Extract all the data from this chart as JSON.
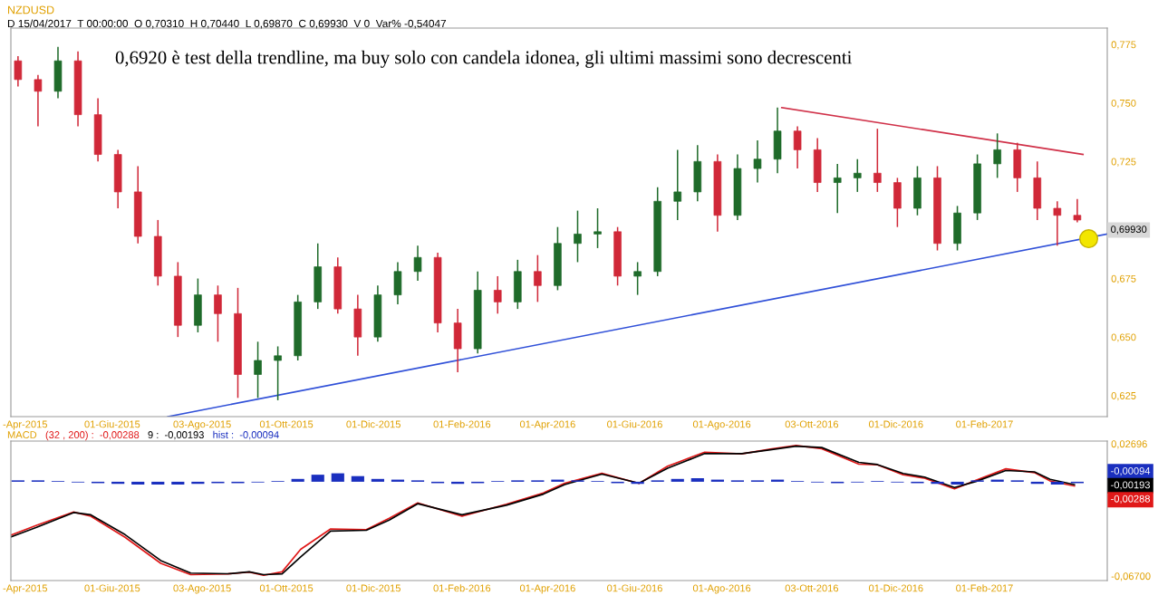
{
  "chart_data": [
    {
      "type": "candlestick",
      "title": "NZDUSD",
      "subtitle": "D 15/04/2017  T 00:00:00  O 0,70310  H 0,70440  L 0,69870  C 0,69930  V 0  Var% -0,54047",
      "x": [
        "2015-03-27",
        "2015-04-10",
        "2015-04-24",
        "2015-05-08",
        "2015-05-22",
        "2015-06-05",
        "2015-06-19",
        "2015-07-03",
        "2015-07-17",
        "2015-07-31",
        "2015-08-14",
        "2015-08-28",
        "2015-09-11",
        "2015-09-25",
        "2015-10-09",
        "2015-10-23",
        "2015-11-06",
        "2015-11-20",
        "2015-12-04",
        "2015-12-18",
        "2016-01-01",
        "2016-01-15",
        "2016-01-29",
        "2016-02-12",
        "2016-02-26",
        "2016-03-11",
        "2016-03-25",
        "2016-04-08",
        "2016-04-22",
        "2016-05-06",
        "2016-05-20",
        "2016-06-03",
        "2016-06-17",
        "2016-07-01",
        "2016-07-15",
        "2016-07-29",
        "2016-08-12",
        "2016-08-26",
        "2016-09-09",
        "2016-09-23",
        "2016-10-07",
        "2016-10-21",
        "2016-11-04",
        "2016-11-18",
        "2016-12-02",
        "2016-12-16",
        "2016-12-30",
        "2017-01-13",
        "2017-01-27",
        "2017-02-10",
        "2017-02-24",
        "2017-03-10",
        "2017-03-24",
        "2017-04-07"
      ],
      "ohlc": [
        [
          0.768,
          0.77,
          0.757,
          0.76
        ],
        [
          0.76,
          0.762,
          0.74,
          0.755
        ],
        [
          0.755,
          0.774,
          0.752,
          0.768
        ],
        [
          0.768,
          0.772,
          0.74,
          0.745
        ],
        [
          0.745,
          0.752,
          0.725,
          0.728
        ],
        [
          0.728,
          0.73,
          0.705,
          0.712
        ],
        [
          0.712,
          0.723,
          0.69,
          0.693
        ],
        [
          0.693,
          0.7,
          0.672,
          0.676
        ],
        [
          0.676,
          0.682,
          0.65,
          0.655
        ],
        [
          0.655,
          0.675,
          0.652,
          0.668
        ],
        [
          0.668,
          0.672,
          0.648,
          0.66
        ],
        [
          0.66,
          0.671,
          0.624,
          0.634
        ],
        [
          0.634,
          0.648,
          0.624,
          0.64
        ],
        [
          0.64,
          0.646,
          0.623,
          0.642
        ],
        [
          0.642,
          0.668,
          0.64,
          0.665
        ],
        [
          0.665,
          0.69,
          0.662,
          0.68
        ],
        [
          0.68,
          0.684,
          0.66,
          0.662
        ],
        [
          0.662,
          0.668,
          0.642,
          0.65
        ],
        [
          0.65,
          0.672,
          0.648,
          0.668
        ],
        [
          0.668,
          0.682,
          0.664,
          0.678
        ],
        [
          0.678,
          0.689,
          0.674,
          0.684
        ],
        [
          0.684,
          0.686,
          0.652,
          0.656
        ],
        [
          0.656,
          0.662,
          0.635,
          0.645
        ],
        [
          0.645,
          0.678,
          0.643,
          0.67
        ],
        [
          0.67,
          0.676,
          0.66,
          0.665
        ],
        [
          0.665,
          0.683,
          0.662,
          0.678
        ],
        [
          0.678,
          0.685,
          0.665,
          0.672
        ],
        [
          0.672,
          0.697,
          0.67,
          0.69
        ],
        [
          0.69,
          0.704,
          0.682,
          0.694
        ],
        [
          0.694,
          0.705,
          0.688,
          0.695
        ],
        [
          0.695,
          0.697,
          0.672,
          0.676
        ],
        [
          0.676,
          0.682,
          0.668,
          0.678
        ],
        [
          0.678,
          0.714,
          0.676,
          0.708
        ],
        [
          0.708,
          0.73,
          0.7,
          0.712
        ],
        [
          0.712,
          0.732,
          0.708,
          0.725
        ],
        [
          0.725,
          0.728,
          0.695,
          0.702
        ],
        [
          0.702,
          0.728,
          0.7,
          0.722
        ],
        [
          0.722,
          0.734,
          0.716,
          0.726
        ],
        [
          0.726,
          0.748,
          0.72,
          0.738
        ],
        [
          0.738,
          0.74,
          0.722,
          0.73
        ],
        [
          0.73,
          0.735,
          0.712,
          0.716
        ],
        [
          0.716,
          0.724,
          0.703,
          0.718
        ],
        [
          0.718,
          0.726,
          0.712,
          0.72
        ],
        [
          0.72,
          0.739,
          0.712,
          0.716
        ],
        [
          0.716,
          0.718,
          0.697,
          0.705
        ],
        [
          0.705,
          0.723,
          0.702,
          0.718
        ],
        [
          0.718,
          0.723,
          0.687,
          0.69
        ],
        [
          0.69,
          0.706,
          0.687,
          0.703
        ],
        [
          0.703,
          0.728,
          0.7,
          0.724
        ],
        [
          0.724,
          0.737,
          0.718,
          0.73
        ],
        [
          0.73,
          0.733,
          0.712,
          0.718
        ],
        [
          0.718,
          0.725,
          0.7,
          0.705
        ],
        [
          0.705,
          0.708,
          0.689,
          0.702
        ],
        [
          0.702,
          0.709,
          0.699,
          0.7
        ]
      ],
      "series": [
        {
          "type": "line",
          "color": "#3050d8",
          "x": [
            "2015-07-10",
            "2017-04-28"
          ],
          "values": [
            0.616,
            0.694
          ]
        },
        {
          "type": "line",
          "color": "#d03048",
          "x": [
            "2016-09-12",
            "2017-04-11"
          ],
          "values": [
            0.748,
            0.728
          ]
        },
        {
          "type": "scatter",
          "color": "#f2e600",
          "marker": "circle",
          "x": [
            "2017-04-15"
          ],
          "values": [
            0.692
          ]
        }
      ],
      "xlim": [
        "2015-03-22",
        "2017-04-28"
      ],
      "ylim": [
        0.616,
        0.782
      ],
      "xticks": [
        {
          "value": "2015-04-01",
          "label": "-Apr-2015"
        },
        {
          "value": "2015-06-01",
          "label": "01-Giu-2015"
        },
        {
          "value": "2015-08-03",
          "label": "03-Ago-2015"
        },
        {
          "value": "2015-10-01",
          "label": "01-Ott-2015"
        },
        {
          "value": "2015-12-01",
          "label": "01-Dic-2015"
        },
        {
          "value": "2016-02-01",
          "label": "01-Feb-2016"
        },
        {
          "value": "2016-04-01",
          "label": "01-Apr-2016"
        },
        {
          "value": "2016-06-01",
          "label": "01-Giu-2016"
        },
        {
          "value": "2016-08-01",
          "label": "01-Ago-2016"
        },
        {
          "value": "2016-10-03",
          "label": "03-Ott-2016"
        },
        {
          "value": "2016-12-01",
          "label": "01-Dic-2016"
        },
        {
          "value": "2017-02-01",
          "label": "01-Feb-2017"
        }
      ],
      "yticks": [
        {
          "value": 0.625,
          "label": "0,625"
        },
        {
          "value": 0.65,
          "label": "0,650"
        },
        {
          "value": 0.675,
          "label": "0,675"
        },
        {
          "value": 0.725,
          "label": "0,725"
        },
        {
          "value": 0.75,
          "label": "0,750"
        },
        {
          "value": 0.775,
          "label": "0,775"
        }
      ],
      "annotations": [
        "0,6920 è test della trendline, ma buy solo con candela idonea, gli ultimi massimi sono decrescenti",
        "0,69930"
      ],
      "grid": false
    },
    {
      "type": "line",
      "title": "MACD",
      "legend": "top left",
      "series": [
        {
          "name": "(32 , 200) :",
          "color": "#e01818",
          "x": [
            "2015-03-22",
            "2015-04-09",
            "2015-05-05",
            "2015-05-17",
            "2015-06-10",
            "2015-07-05",
            "2015-07-26",
            "2015-08-21",
            "2015-09-05",
            "2015-09-15",
            "2015-09-28",
            "2015-10-11",
            "2015-11-01",
            "2015-11-26",
            "2015-12-12",
            "2016-01-01",
            "2016-02-01",
            "2016-03-03",
            "2016-03-29",
            "2016-04-13",
            "2016-05-09",
            "2016-06-04",
            "2016-06-24",
            "2016-07-20",
            "2016-08-15",
            "2016-09-04",
            "2016-09-22",
            "2016-10-10",
            "2016-11-05",
            "2016-11-18",
            "2016-12-06",
            "2016-12-21",
            "2017-01-11",
            "2017-01-26",
            "2017-02-16",
            "2017-03-08",
            "2017-03-19",
            "2017-04-05"
          ],
          "values": [
            -0.038,
            -0.031,
            -0.0215,
            -0.0245,
            -0.0395,
            -0.058,
            -0.066,
            -0.0655,
            -0.0642,
            -0.0665,
            -0.064,
            -0.048,
            -0.0335,
            -0.034,
            -0.026,
            -0.015,
            -0.0245,
            -0.016,
            -0.008,
            -0.001,
            0.006,
            -0.0012,
            0.011,
            0.021,
            0.0198,
            0.0232,
            0.0258,
            0.0235,
            0.0125,
            0.012,
            0.005,
            0.0025,
            -0.005,
            0.001,
            0.0092,
            0.0065,
            0.0005,
            -0.003
          ]
        },
        {
          "name": "9 :",
          "color": "#000000",
          "x": [
            "2015-03-22",
            "2015-04-09",
            "2015-05-05",
            "2015-05-17",
            "2015-06-10",
            "2015-07-05",
            "2015-07-26",
            "2015-08-21",
            "2015-09-05",
            "2015-09-15",
            "2015-09-28",
            "2015-10-11",
            "2015-11-01",
            "2015-11-26",
            "2015-12-12",
            "2016-01-01",
            "2016-02-01",
            "2016-03-03",
            "2016-03-29",
            "2016-04-13",
            "2016-05-09",
            "2016-06-04",
            "2016-06-24",
            "2016-07-20",
            "2016-08-15",
            "2016-09-04",
            "2016-09-22",
            "2016-10-10",
            "2016-11-05",
            "2016-11-18",
            "2016-12-06",
            "2016-12-21",
            "2017-01-11",
            "2017-01-26",
            "2017-02-16",
            "2017-03-08",
            "2017-03-19",
            "2017-04-05"
          ],
          "values": [
            -0.0392,
            -0.0324,
            -0.0219,
            -0.0235,
            -0.0376,
            -0.056,
            -0.0649,
            -0.0654,
            -0.064,
            -0.066,
            -0.0655,
            -0.0534,
            -0.035,
            -0.0345,
            -0.0272,
            -0.0156,
            -0.0235,
            -0.0167,
            -0.0088,
            -0.002,
            0.0054,
            -0.001,
            0.0096,
            0.02,
            0.02,
            0.0227,
            0.0253,
            0.0243,
            0.0138,
            0.0122,
            0.0059,
            0.0033,
            -0.0041,
            0.0002,
            0.008,
            0.007,
            0.0017,
            -0.002
          ]
        },
        {
          "name": "hist :",
          "type": "bar",
          "color": "#1a2fbf",
          "x": [
            "2015-03-27",
            "2015-04-10",
            "2015-04-24",
            "2015-05-08",
            "2015-05-22",
            "2015-06-05",
            "2015-06-19",
            "2015-07-03",
            "2015-07-17",
            "2015-07-31",
            "2015-08-14",
            "2015-08-28",
            "2015-09-11",
            "2015-09-25",
            "2015-10-09",
            "2015-10-23",
            "2015-11-06",
            "2015-11-20",
            "2015-12-04",
            "2015-12-18",
            "2016-01-01",
            "2016-01-15",
            "2016-01-29",
            "2016-02-12",
            "2016-02-26",
            "2016-03-11",
            "2016-03-25",
            "2016-04-08",
            "2016-04-22",
            "2016-05-06",
            "2016-05-20",
            "2016-06-03",
            "2016-06-17",
            "2016-07-01",
            "2016-07-15",
            "2016-07-29",
            "2016-08-12",
            "2016-08-26",
            "2016-09-09",
            "2016-09-23",
            "2016-10-07",
            "2016-10-21",
            "2016-11-04",
            "2016-11-18",
            "2016-12-02",
            "2016-12-16",
            "2016-12-30",
            "2017-01-13",
            "2017-01-27",
            "2017-02-10",
            "2017-02-24",
            "2017-03-10",
            "2017-03-24",
            "2017-04-07"
          ],
          "values": [
            0.001,
            0.001,
            0.0005,
            -0.0005,
            -0.001,
            -0.0015,
            -0.002,
            -0.002,
            -0.002,
            -0.0015,
            -0.001,
            -0.001,
            -0.0005,
            0.0005,
            0.002,
            0.005,
            0.006,
            0.004,
            0.002,
            0.0015,
            0.001,
            -0.001,
            -0.0015,
            -0.001,
            0.0005,
            0.001,
            0.001,
            0.0015,
            0.001,
            0.0005,
            -0.001,
            -0.0015,
            0.001,
            0.002,
            0.0025,
            0.0015,
            0.001,
            0.001,
            0.0015,
            0.0005,
            -0.0005,
            -0.001,
            -0.0005,
            0.0005,
            -0.0005,
            -0.001,
            -0.0015,
            -0.002,
            0.001,
            0.0015,
            0.001,
            -0.0015,
            -0.002,
            -0.001
          ]
        }
      ],
      "annotations": [
        "-0,00288",
        "-0,00193",
        "-0,00094"
      ],
      "xlim": [
        "2015-03-22",
        "2017-04-28"
      ],
      "ylim": [
        -0.0702,
        0.0289
      ],
      "xticks": [
        {
          "value": "2015-04-01",
          "label": "-Apr-2015"
        },
        {
          "value": "2015-06-01",
          "label": "01-Giu-2015"
        },
        {
          "value": "2015-08-03",
          "label": "03-Ago-2015"
        },
        {
          "value": "2015-10-01",
          "label": "01-Ott-2015"
        },
        {
          "value": "2015-12-01",
          "label": "01-Dic-2015"
        },
        {
          "value": "2016-02-01",
          "label": "01-Feb-2016"
        },
        {
          "value": "2016-04-01",
          "label": "01-Apr-2016"
        },
        {
          "value": "2016-06-01",
          "label": "01-Giu-2016"
        },
        {
          "value": "2016-08-01",
          "label": "01-Ago-2016"
        },
        {
          "value": "2016-10-03",
          "label": "03-Ott-2016"
        },
        {
          "value": "2016-12-01",
          "label": "01-Dic-2016"
        },
        {
          "value": "2017-02-01",
          "label": "01-Feb-2017"
        }
      ],
      "yticks": [
        {
          "value": 0.02696,
          "label": "0,02696"
        },
        {
          "value": -0.067,
          "label": "-0,06700"
        }
      ],
      "grid": false
    }
  ]
}
